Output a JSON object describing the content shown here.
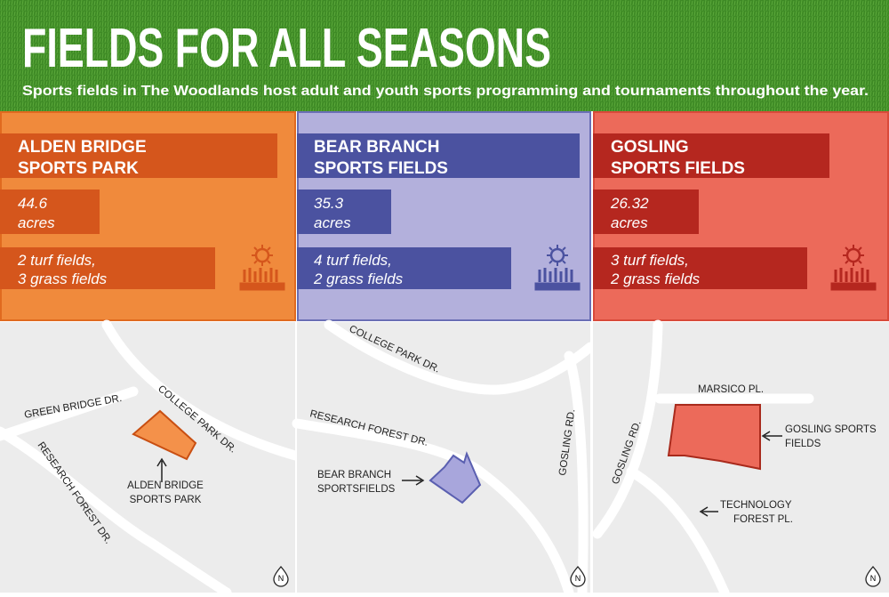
{
  "header": {
    "title": "FIELDS FOR ALL SEASONS",
    "subtitle": "Sports fields in The Woodlands host adult and youth sports programming and tournaments throughout the year."
  },
  "parks": [
    {
      "name": [
        "ALDEN BRIDGE",
        "SPORTS PARK"
      ],
      "acres": [
        "44.6",
        "acres"
      ],
      "fields": [
        "2 turf fields,",
        "3 grass fields"
      ]
    },
    {
      "name": [
        "BEAR BRANCH",
        "SPORTS FIELDS"
      ],
      "acres": [
        "35.3",
        "acres"
      ],
      "fields": [
        "4 turf fields,",
        "2 grass fields"
      ]
    },
    {
      "name": [
        "GOSLING",
        "SPORTS FIELDS"
      ],
      "acres": [
        "26.32",
        "acres"
      ],
      "fields": [
        "3 turf fields,",
        "2 grass fields"
      ]
    }
  ],
  "maps": [
    {
      "labels": [
        "GREEN BRIDGE DR.",
        "COLLEGE PARK DR.",
        "RESEARCH FOREST DR.",
        "ALDEN BRIDGE",
        "SPORTS PARK"
      ],
      "north": "N"
    },
    {
      "labels": [
        "COLLEGE PARK DR.",
        "RESEARCH FOREST DR.",
        "GOSLING RD.",
        "BEAR BRANCH",
        "SPORTSFIELDS"
      ],
      "north": "N"
    },
    {
      "labels": [
        "MARSICO PL.",
        "GOSLING RD.",
        "GOSLING SPORTS",
        "FIELDS",
        "TECHNOLOGY",
        "FOREST PL."
      ],
      "north": "N"
    }
  ]
}
